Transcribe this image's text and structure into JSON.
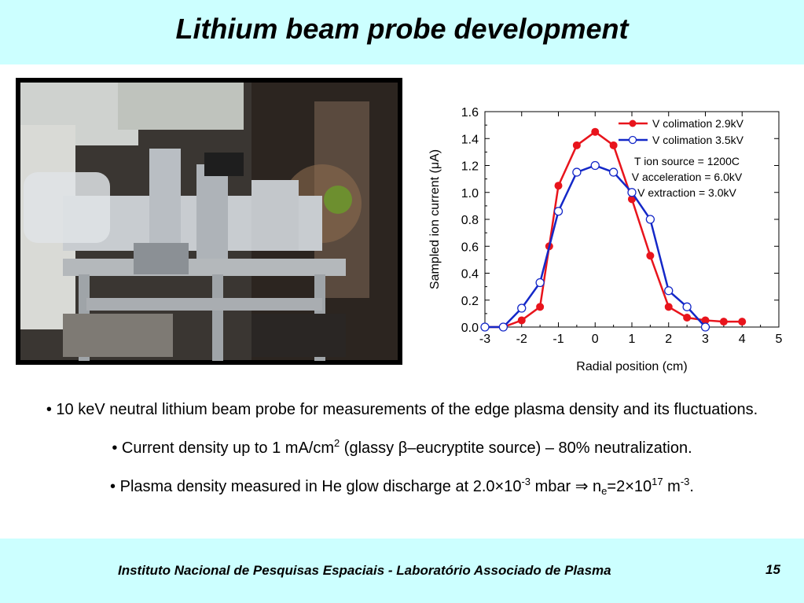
{
  "slide": {
    "title": "Lithium beam probe development",
    "footer": "Instituto Nacional de Pesquisas Espaciais - Laboratório Associado de Plasma",
    "page_number": "15"
  },
  "bullets": {
    "b1": "• 10 keV neutral lithium beam probe for measurements of the edge plasma density and its fluctuations.",
    "b2_prefix": "• Current density up to 1 mA/cm",
    "b2_sup": "2",
    "b2_mid": " (glassy ",
    "b2_symbol": "β",
    "b2_suffix": "–eucryptite source) – 80% neutralization.",
    "b3_prefix": "• Plasma density measured in He glow discharge at 2.0×10",
    "b3_exp1": "-3",
    "b3_mid": " mbar ",
    "b3_arrow": "⇒",
    "b3_n": " n",
    "b3_sub": "e",
    "b3_eq": "=2×10",
    "b3_exp2": "17",
    "b3_unit": " m",
    "b3_exp3": "-3",
    "b3_end": "."
  },
  "colors": {
    "band": "#ccffff",
    "series_red": "#e8141c",
    "series_blue": "#1428c8"
  },
  "chart_data": {
    "type": "line",
    "xlabel": "Radial position (cm)",
    "ylabel": "Sampled ion current (μA)",
    "xlim": [
      -3,
      5
    ],
    "ylim": [
      0,
      1.6
    ],
    "xticks": [
      "-3",
      "-2",
      "-1",
      "0",
      "1",
      "2",
      "3",
      "4",
      "5"
    ],
    "yticks": [
      "0.0",
      "0.2",
      "0.4",
      "0.6",
      "0.8",
      "1.0",
      "1.2",
      "1.4",
      "1.6"
    ],
    "legend_position": "top-right",
    "annotations": [
      "T ion source = 1200C",
      "V acceleration = 6.0kV",
      "V extraction = 3.0kV"
    ],
    "series": [
      {
        "name": "V colimation 2.9kV",
        "marker": "filled-circle",
        "color": "#e8141c",
        "x": [
          -3,
          -2.5,
          -2,
          -1.5,
          -1.25,
          -1,
          -0.5,
          0,
          0.5,
          1,
          1.5,
          2,
          2.5,
          3,
          3.5,
          4
        ],
        "y": [
          0.0,
          0.0,
          0.05,
          0.15,
          0.6,
          1.05,
          1.35,
          1.45,
          1.35,
          0.95,
          0.53,
          0.15,
          0.07,
          0.05,
          0.04,
          0.04
        ]
      },
      {
        "name": "V colimation 3.5kV",
        "marker": "open-circle",
        "color": "#1428c8",
        "x": [
          -3,
          -2.5,
          -2,
          -1.5,
          -1,
          -0.5,
          0,
          0.5,
          1,
          1.5,
          2,
          2.5,
          3
        ],
        "y": [
          0.0,
          0.0,
          0.14,
          0.33,
          0.86,
          1.15,
          1.2,
          1.15,
          1.0,
          0.8,
          0.27,
          0.15,
          0.0
        ]
      }
    ]
  }
}
